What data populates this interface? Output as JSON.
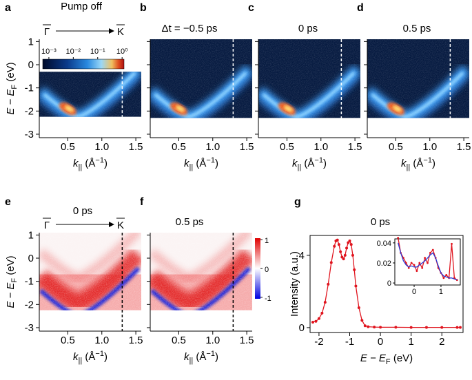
{
  "chart_data": [
    {
      "type": "image",
      "label": "a",
      "title": "Pump off",
      "k_points": [
        "Γ",
        "K"
      ],
      "colormap": "heat",
      "xlim": [
        0.08,
        1.58
      ],
      "xticks": [
        0.5,
        {
          "value": 1.0,
          "label": "1.0"
        },
        1.5
      ],
      "ylim": [
        -3.15,
        1.1
      ],
      "yticks": [
        1,
        0,
        -1,
        -2,
        -3
      ],
      "image_ylim": [
        -2.25,
        -0.3
      ],
      "cut_k": 1.3,
      "x_label": [
        "k",
        "||",
        " (Å",
        "−1",
        ")"
      ],
      "y_label": [
        "E − E",
        "F",
        " (eV)"
      ],
      "colorbar": {
        "scale": "log",
        "lim": [
          0.00056,
          1.2
        ],
        "ticks": [
          {
            "value": 0.001,
            "label": "10⁻³"
          },
          {
            "value": 0.01,
            "label": "10⁻²"
          },
          {
            "value": 0.1,
            "label": "10⁻¹"
          },
          {
            "value": 1,
            "label": "10⁰"
          }
        ]
      }
    },
    {
      "type": "image",
      "label": "b",
      "title": "Δt = −0.5 ps",
      "colormap": "heat",
      "xlim": [
        0.08,
        1.58
      ],
      "xticks": [
        0.5,
        {
          "value": 1.0,
          "label": "1.0"
        },
        1.5
      ],
      "ylim": [
        -3.15,
        1.1
      ],
      "yticks": [
        1,
        0,
        -1,
        -2,
        -3
      ],
      "image_ylim": [
        -2.3,
        1.1
      ],
      "cut_k": 1.3,
      "x_label": [
        "k",
        "||",
        " (Å",
        "−1",
        ")"
      ]
    },
    {
      "type": "image",
      "label": "c",
      "title": "0 ps",
      "colormap": "heat",
      "xlim": [
        0.08,
        1.58
      ],
      "xticks": [
        0.5,
        {
          "value": 1.0,
          "label": "1.0"
        },
        1.5
      ],
      "ylim": [
        -3.15,
        1.1
      ],
      "yticks": [
        1,
        0,
        -1,
        -2,
        -3
      ],
      "image_ylim": [
        -2.3,
        1.1
      ],
      "cut_k": 1.3,
      "x_label": [
        "k",
        "||",
        " (Å",
        "−1",
        ")"
      ]
    },
    {
      "type": "image",
      "label": "d",
      "title": "0.5 ps",
      "colormap": "heat",
      "xlim": [
        0.08,
        1.58
      ],
      "xticks": [
        0.5,
        {
          "value": 1.0,
          "label": "1.0"
        },
        1.5
      ],
      "ylim": [
        -3.15,
        1.1
      ],
      "yticks": [
        1,
        0,
        -1,
        -2,
        -3
      ],
      "image_ylim": [
        -2.3,
        1.1
      ],
      "cut_k": 1.3,
      "x_label": [
        "k",
        "||",
        " (Å",
        "−1",
        ")"
      ]
    },
    {
      "type": "image",
      "label": "e",
      "title": "0 ps",
      "k_points": [
        "Γ",
        "K"
      ],
      "colormap": "diverging",
      "xlim": [
        0.08,
        1.58
      ],
      "xticks": [
        0.5,
        {
          "value": 1.0,
          "label": "1.0"
        },
        1.5
      ],
      "ylim": [
        -3.15,
        1.1
      ],
      "yticks": [
        1,
        0,
        -1,
        -2,
        -3
      ],
      "image_ylim": [
        -2.25,
        1.1
      ],
      "cut_k": 1.3,
      "x_label": [
        "k",
        "||",
        " (Å",
        "−1",
        ")"
      ],
      "y_label": [
        "E − E",
        "F",
        " (eV)"
      ]
    },
    {
      "type": "image",
      "label": "f",
      "title": "0.5 ps",
      "colormap": "diverging",
      "xlim": [
        0.08,
        1.58
      ],
      "xticks": [
        0.5,
        {
          "value": 1.0,
          "label": "1.0"
        },
        1.5
      ],
      "ylim": [
        -3.15,
        1.1
      ],
      "yticks": [
        1,
        0,
        -1,
        -2,
        -3
      ],
      "image_ylim": [
        -2.25,
        1.1
      ],
      "cut_k": 1.3,
      "x_label": [
        "k",
        "||",
        " (Å",
        "−1",
        ")"
      ],
      "colorbar": {
        "scale": "linear",
        "lim": [
          -1.05,
          1.05
        ],
        "ticks": [
          1,
          0,
          -1
        ]
      }
    },
    {
      "type": "line",
      "label": "g",
      "title": "0 ps",
      "x_label": [
        "E − E",
        "F",
        " (eV)"
      ],
      "y_label": "Intensity (a.u.)",
      "xlim": [
        -2.29,
        2.69
      ],
      "xticks": [
        -2,
        -1,
        0,
        1,
        2
      ],
      "ylim": [
        -0.27,
        5.1
      ],
      "yticks": [
        0,
        4
      ],
      "x": [
        -2.2,
        -2.1,
        -2.0,
        -1.9,
        -1.8,
        -1.7,
        -1.6,
        -1.5,
        -1.45,
        -1.4,
        -1.35,
        -1.3,
        -1.25,
        -1.2,
        -1.15,
        -1.1,
        -1.05,
        -1.0,
        -0.95,
        -0.9,
        -0.85,
        -0.8,
        -0.7,
        -0.6,
        -0.5,
        -0.4,
        -0.2,
        0,
        0.5,
        1,
        1.5,
        2,
        2.5,
        2.6
      ],
      "series": [
        {
          "color": "#e0141e",
          "values": [
            0.3,
            0.35,
            0.5,
            0.8,
            1.4,
            2.4,
            3.6,
            4.5,
            4.8,
            4.85,
            4.6,
            4.2,
            3.9,
            3.8,
            4.0,
            4.4,
            4.7,
            4.8,
            4.6,
            4.0,
            3.2,
            2.3,
            1.1,
            0.4,
            0.1,
            0.05,
            0.03,
            0.02,
            0.02,
            0.01,
            0.01,
            0.01,
            0.01,
            0.01
          ]
        }
      ],
      "inset": {
        "xlim": [
          -0.72,
          1.72
        ],
        "xticks": [
          0,
          1
        ],
        "ylim": [
          -0.002,
          0.044
        ],
        "yticks": [
          0,
          0.02,
          0.04
        ],
        "x": [
          -0.6,
          -0.5,
          -0.4,
          -0.3,
          -0.2,
          -0.1,
          0,
          0.1,
          0.2,
          0.3,
          0.4,
          0.5,
          0.6,
          0.7,
          0.8,
          0.9,
          1.0,
          1.1,
          1.2,
          1.3,
          1.4,
          1.5,
          1.6
        ],
        "series": [
          {
            "color": "#e0141e",
            "values": [
              0.045,
              0.03,
              0.025,
              0.02,
              0.015,
              0.02,
              0.018,
              0.012,
              0.02,
              0.015,
              0.025,
              0.02,
              0.03,
              0.033,
              0.025,
              0.015,
              0.01,
              0.005,
              0.008,
              0.005,
              0.039,
              0.005,
              0.003
            ]
          },
          {
            "color": "#2a3ad8",
            "values": [
              0.04,
              0.03,
              0.022,
              0.018,
              0.016,
              0.017,
              0.016,
              0.016,
              0.018,
              0.02,
              0.022,
              0.025,
              0.028,
              0.03,
              0.025,
              0.017,
              0.01,
              0.007,
              0.006,
              0.005,
              0.005,
              0.004,
              0.003
            ]
          }
        ]
      }
    }
  ]
}
